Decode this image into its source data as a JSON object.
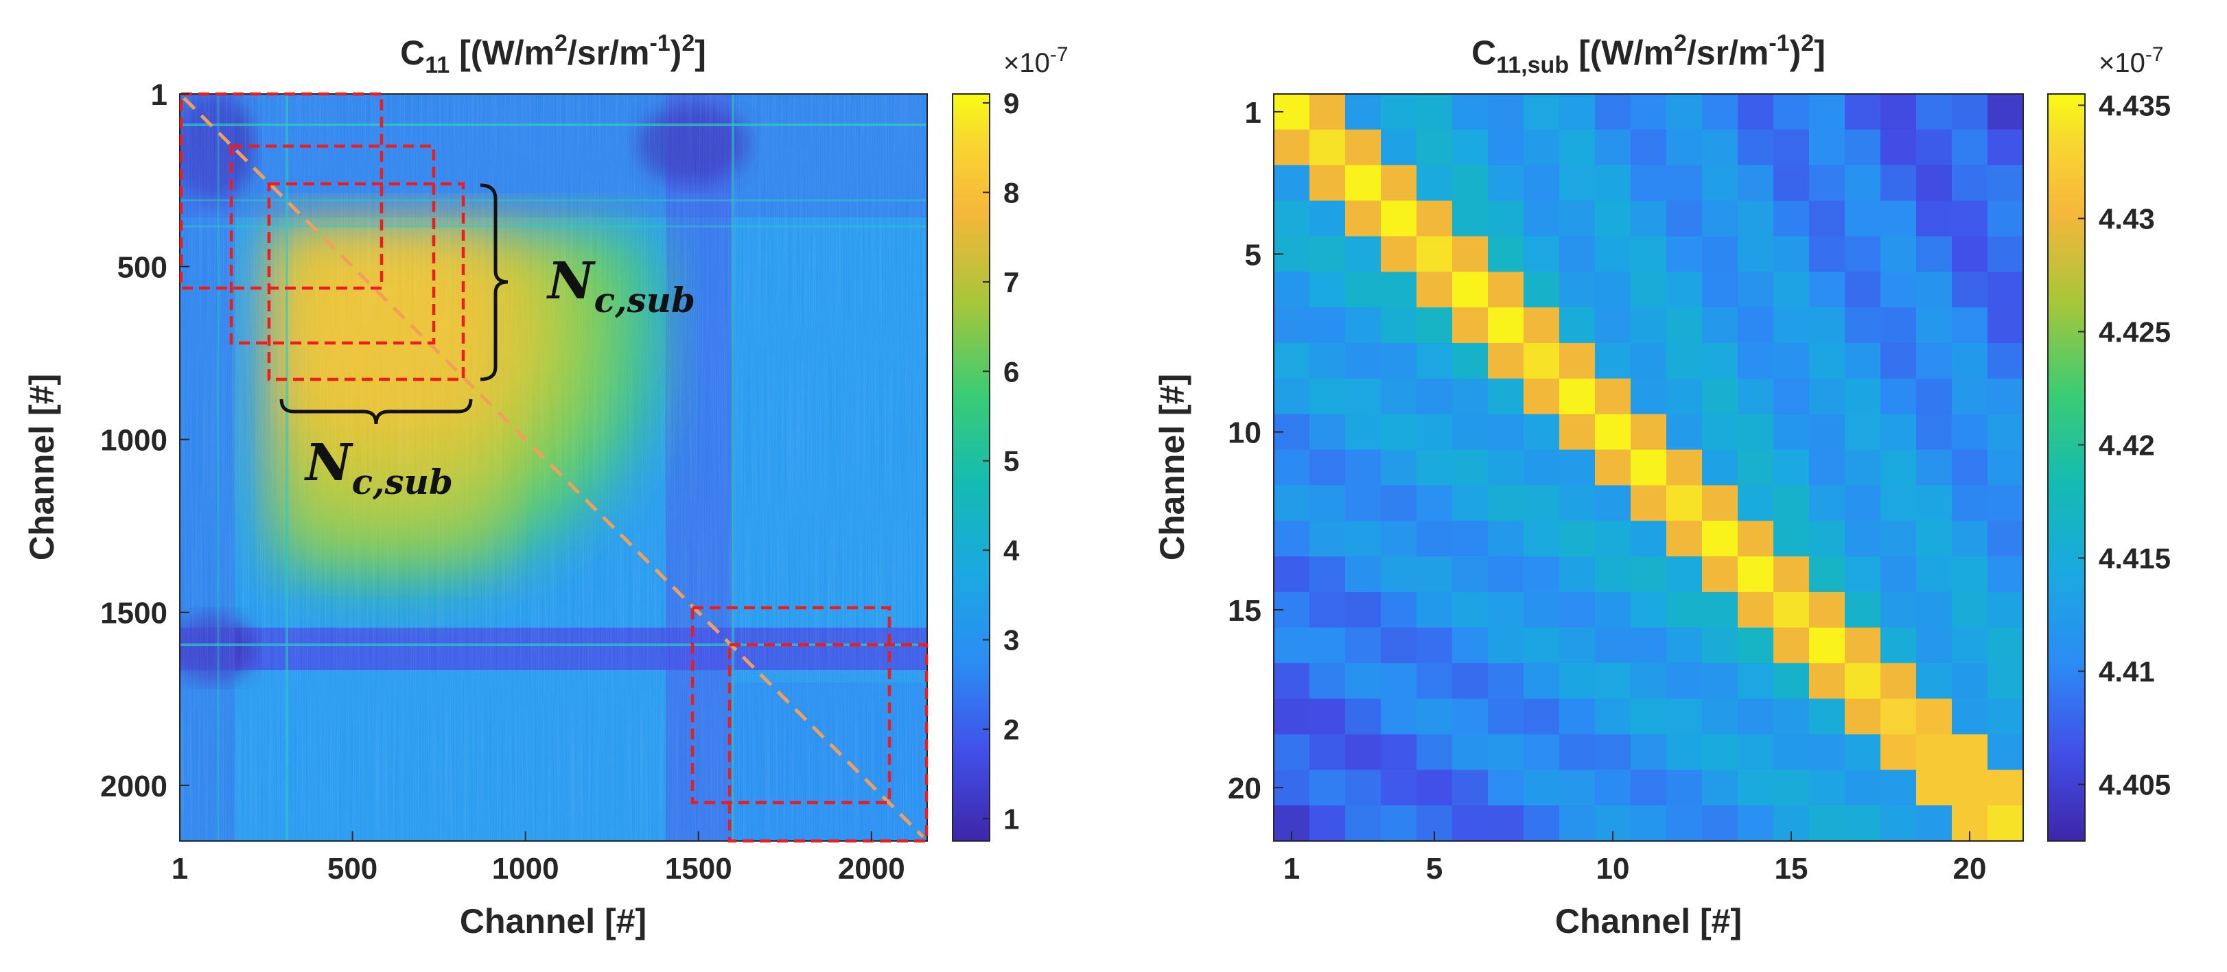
{
  "chart_data": [
    {
      "type": "heatmap",
      "title_main": "C",
      "title_sub": "11",
      "title_units": "[(W/m",
      "title_units_sup1": "2",
      "title_units_mid": "/sr/m",
      "title_units_sup2": "-1",
      "title_units_end": ")",
      "title_units_sup3": "2",
      "title_units_close": "]",
      "xlabel": "Channel [#]",
      "ylabel": "Channel [#]",
      "x_ticks": [
        1,
        500,
        1000,
        1500,
        2000
      ],
      "y_ticks": [
        1,
        500,
        1000,
        1500,
        2000
      ],
      "xlim": [
        1,
        2161
      ],
      "ylim": [
        1,
        2161
      ],
      "colorbar": {
        "exponent_base": "×10",
        "exponent_power": "-7",
        "ticks": [
          1,
          2,
          3,
          4,
          5,
          6,
          7,
          8,
          9
        ],
        "range": [
          0.75,
          9.1
        ]
      },
      "features": {
        "hot_block_channels": [
          300,
          1430
        ],
        "hot_peak_value": 8.3,
        "background_value": 3.0,
        "low_band_channels": [
          1580,
          1680
        ],
        "low_band_value": 1.6,
        "lower_right_block_channels": [
          1650,
          2161
        ],
        "lower_right_block_value": 3.6
      },
      "annotations": {
        "label_base": "N",
        "label_sub": "c,sub",
        "subset_boxes_channels": [
          [
            1,
            580
          ],
          [
            150,
            730
          ],
          [
            260,
            840
          ],
          [
            1500,
            2050
          ],
          [
            1600,
            2161
          ]
        ],
        "diagonal_line": "dashed"
      }
    },
    {
      "type": "heatmap",
      "title_main": "C",
      "title_sub": "11,sub",
      "title_units": "[(W/m",
      "title_units_sup1": "2",
      "title_units_mid": "/sr/m",
      "title_units_sup2": "-1",
      "title_units_end": ")",
      "title_units_sup3": "2",
      "title_units_close": "]",
      "xlabel": "Channel [#]",
      "ylabel": "Channel [#]",
      "x_ticks": [
        1,
        5,
        10,
        15,
        20
      ],
      "y_ticks": [
        1,
        5,
        10,
        15,
        20
      ],
      "xlim": [
        1,
        21
      ],
      "ylim": [
        1,
        21
      ],
      "matrix_size": 21,
      "colorbar": {
        "exponent_base": "×10",
        "exponent_power": "-7",
        "ticks": [
          4.405,
          4.41,
          4.415,
          4.42,
          4.425,
          4.43,
          4.435
        ],
        "tick_labels": [
          "4.405",
          "4.41",
          "4.415",
          "4.42",
          "4.425",
          "4.43",
          "4.435"
        ],
        "range": [
          4.4025,
          4.4355
        ]
      },
      "diagonal_values": [
        4.435,
        4.434,
        4.435,
        4.435,
        4.434,
        4.435,
        4.435,
        4.434,
        4.435,
        4.435,
        4.435,
        4.434,
        4.435,
        4.435,
        4.434,
        4.435,
        4.434,
        4.433,
        4.432,
        4.432,
        4.434
      ],
      "first_offdiagonal_values": [
        4.43,
        4.43,
        4.43,
        4.43,
        4.43,
        4.43,
        4.43,
        4.43,
        4.43,
        4.43,
        4.43,
        4.43,
        4.43,
        4.43,
        4.43,
        4.43,
        4.43,
        4.431,
        4.432,
        4.432
      ]
    }
  ]
}
